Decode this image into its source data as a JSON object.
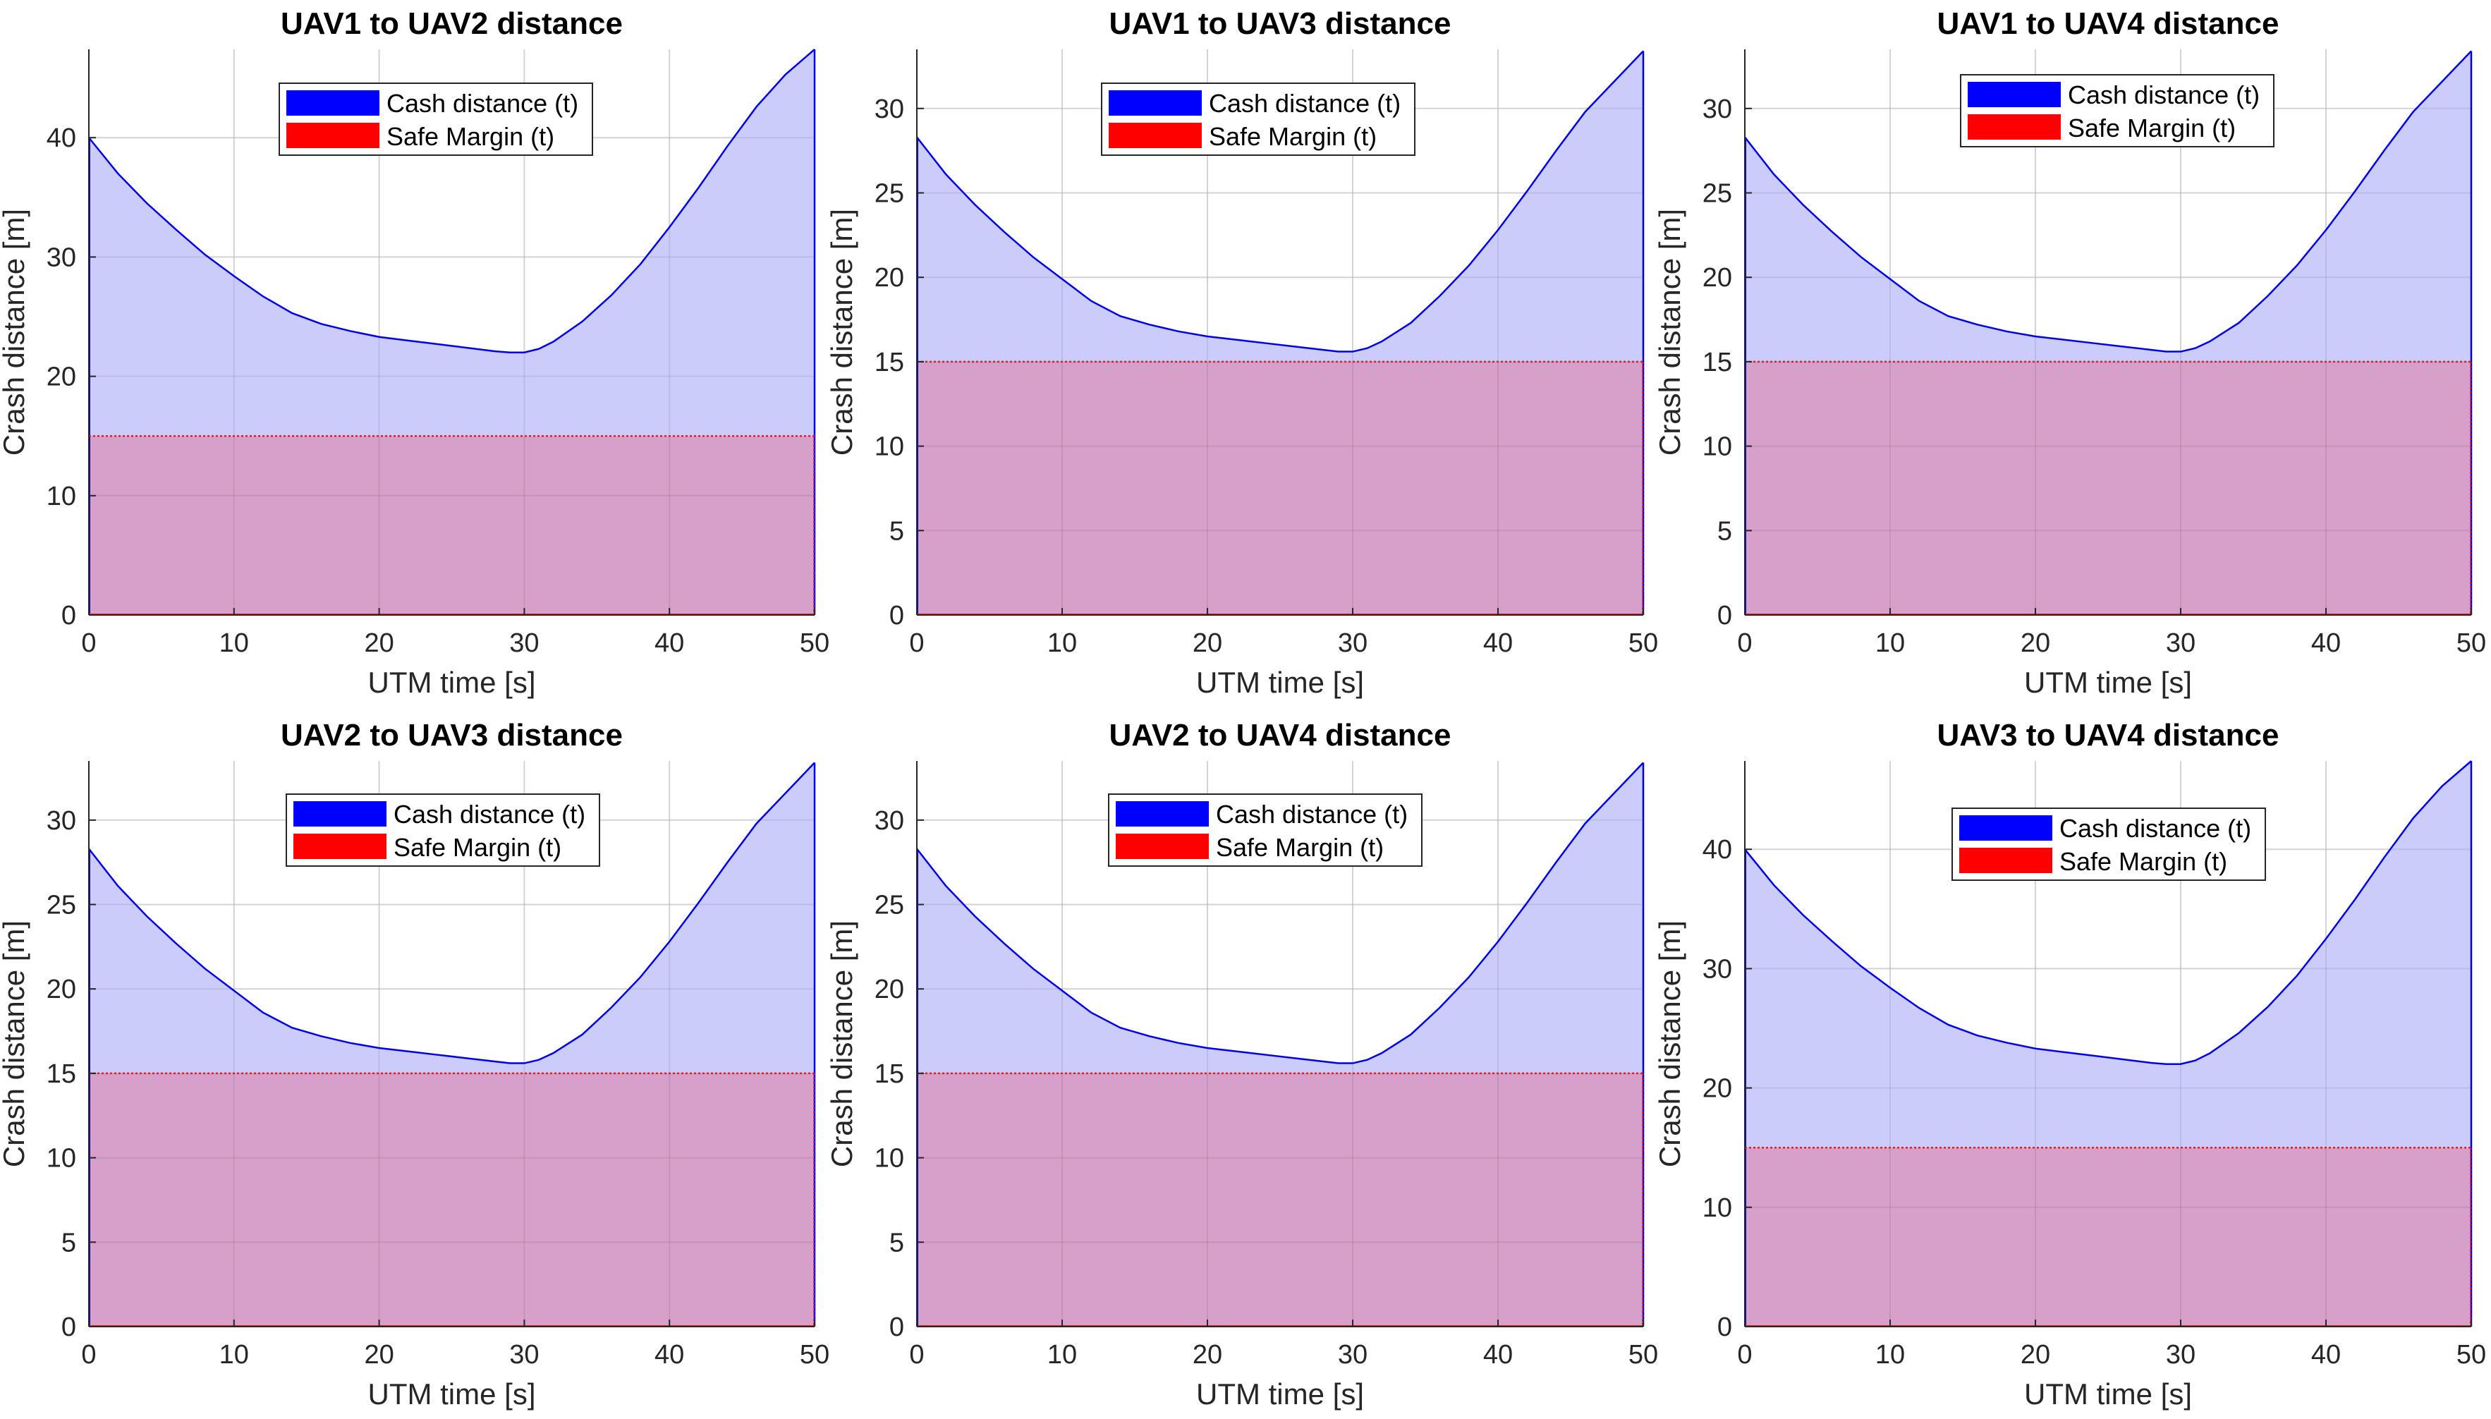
{
  "colors": {
    "crash_fill": "#cbccfa",
    "crash_line": "#0000ee",
    "safe_fill": "#d6a0ca",
    "safe_line": "#e0201c",
    "grid": "#e5e5e5",
    "axis": "#262626",
    "legend_blue": "#0000ff",
    "legend_red": "#ff0000"
  },
  "chart_data": [
    {
      "type": "area",
      "title": "UAV1 to UAV2 distance",
      "xlabel": "UTM time [s]",
      "ylabel": "Crash distance [m]",
      "xlim": [
        0,
        50
      ],
      "ylim": [
        0,
        47.4
      ],
      "xticks": [
        0,
        10,
        20,
        30,
        40,
        50
      ],
      "yticks": [
        0,
        10,
        20,
        30,
        40
      ],
      "grid": true,
      "legend_placement": "top",
      "x": [
        0,
        2,
        4,
        6,
        8,
        10,
        12,
        14,
        16,
        18,
        20,
        22,
        24,
        26,
        28,
        29,
        30,
        31,
        32,
        34,
        36,
        38,
        40,
        42,
        44,
        46,
        48,
        50
      ],
      "series": [
        {
          "name": "Cash distance (t)",
          "values": [
            40.0,
            37.0,
            34.5,
            32.3,
            30.2,
            28.4,
            26.7,
            25.3,
            24.4,
            23.8,
            23.3,
            23.0,
            22.7,
            22.4,
            22.1,
            22.0,
            22.0,
            22.3,
            22.9,
            24.6,
            26.8,
            29.4,
            32.5,
            35.8,
            39.3,
            42.6,
            45.3,
            47.4
          ]
        },
        {
          "name": "Safe Margin (t)",
          "values": [
            15,
            15,
            15,
            15,
            15,
            15,
            15,
            15,
            15,
            15,
            15,
            15,
            15,
            15,
            15,
            15,
            15,
            15,
            15,
            15,
            15,
            15,
            15,
            15,
            15,
            15,
            15,
            15
          ]
        }
      ]
    },
    {
      "type": "area",
      "title": "UAV1 to UAV3 distance",
      "xlabel": "UTM time [s]",
      "ylabel": "Crash distance [m]",
      "xlim": [
        0,
        50
      ],
      "ylim": [
        0,
        33.5
      ],
      "xticks": [
        0,
        10,
        20,
        30,
        40,
        50
      ],
      "yticks": [
        0,
        5,
        10,
        15,
        20,
        25,
        30
      ],
      "grid": true,
      "legend_placement": "top",
      "x": [
        0,
        2,
        4,
        6,
        8,
        10,
        12,
        14,
        16,
        18,
        20,
        22,
        24,
        26,
        28,
        29,
        30,
        31,
        32,
        34,
        36,
        38,
        40,
        42,
        44,
        46,
        48,
        50
      ],
      "series": [
        {
          "name": "Cash distance (t)",
          "values": [
            28.3,
            26.1,
            24.3,
            22.7,
            21.2,
            19.9,
            18.6,
            17.7,
            17.2,
            16.8,
            16.5,
            16.3,
            16.1,
            15.9,
            15.7,
            15.6,
            15.6,
            15.8,
            16.2,
            17.3,
            18.9,
            20.7,
            22.8,
            25.1,
            27.5,
            29.8,
            31.6,
            33.4
          ]
        },
        {
          "name": "Safe Margin (t)",
          "values": [
            15,
            15,
            15,
            15,
            15,
            15,
            15,
            15,
            15,
            15,
            15,
            15,
            15,
            15,
            15,
            15,
            15,
            15,
            15,
            15,
            15,
            15,
            15,
            15,
            15,
            15,
            15,
            15
          ]
        }
      ]
    },
    {
      "type": "area",
      "title": "UAV1 to UAV4 distance",
      "xlabel": "UTM time [s]",
      "ylabel": "Crash distance [m]",
      "xlim": [
        0,
        50
      ],
      "ylim": [
        0,
        33.5
      ],
      "xticks": [
        0,
        10,
        20,
        30,
        40,
        50
      ],
      "yticks": [
        0,
        5,
        10,
        15,
        20,
        25,
        30
      ],
      "grid": true,
      "legend_placement": "top",
      "x": [
        0,
        2,
        4,
        6,
        8,
        10,
        12,
        14,
        16,
        18,
        20,
        22,
        24,
        26,
        28,
        29,
        30,
        31,
        32,
        34,
        36,
        38,
        40,
        42,
        44,
        46,
        48,
        50
      ],
      "series": [
        {
          "name": "Cash distance (t)",
          "values": [
            28.3,
            26.1,
            24.3,
            22.7,
            21.2,
            19.9,
            18.6,
            17.7,
            17.2,
            16.8,
            16.5,
            16.3,
            16.1,
            15.9,
            15.7,
            15.6,
            15.6,
            15.8,
            16.2,
            17.3,
            18.9,
            20.7,
            22.8,
            25.1,
            27.5,
            29.8,
            31.6,
            33.4
          ]
        },
        {
          "name": "Safe Margin (t)",
          "values": [
            15,
            15,
            15,
            15,
            15,
            15,
            15,
            15,
            15,
            15,
            15,
            15,
            15,
            15,
            15,
            15,
            15,
            15,
            15,
            15,
            15,
            15,
            15,
            15,
            15,
            15,
            15,
            15
          ]
        }
      ]
    },
    {
      "type": "area",
      "title": "UAV2 to UAV3 distance",
      "xlabel": "UTM time [s]",
      "ylabel": "Crash distance [m]",
      "xlim": [
        0,
        50
      ],
      "ylim": [
        0,
        33.5
      ],
      "xticks": [
        0,
        10,
        20,
        30,
        40,
        50
      ],
      "yticks": [
        0,
        5,
        10,
        15,
        20,
        25,
        30
      ],
      "grid": true,
      "legend_placement": "top",
      "x": [
        0,
        2,
        4,
        6,
        8,
        10,
        12,
        14,
        16,
        18,
        20,
        22,
        24,
        26,
        28,
        29,
        30,
        31,
        32,
        34,
        36,
        38,
        40,
        42,
        44,
        46,
        48,
        50
      ],
      "series": [
        {
          "name": "Cash distance (t)",
          "values": [
            28.3,
            26.1,
            24.3,
            22.7,
            21.2,
            19.9,
            18.6,
            17.7,
            17.2,
            16.8,
            16.5,
            16.3,
            16.1,
            15.9,
            15.7,
            15.6,
            15.6,
            15.8,
            16.2,
            17.3,
            18.9,
            20.7,
            22.8,
            25.1,
            27.5,
            29.8,
            31.6,
            33.4
          ]
        },
        {
          "name": "Safe Margin (t)",
          "values": [
            15,
            15,
            15,
            15,
            15,
            15,
            15,
            15,
            15,
            15,
            15,
            15,
            15,
            15,
            15,
            15,
            15,
            15,
            15,
            15,
            15,
            15,
            15,
            15,
            15,
            15,
            15,
            15
          ]
        }
      ]
    },
    {
      "type": "area",
      "title": "UAV2 to UAV4 distance",
      "xlabel": "UTM time [s]",
      "ylabel": "Crash distance [m]",
      "xlim": [
        0,
        50
      ],
      "ylim": [
        0,
        33.5
      ],
      "xticks": [
        0,
        10,
        20,
        30,
        40,
        50
      ],
      "yticks": [
        0,
        5,
        10,
        15,
        20,
        25,
        30
      ],
      "grid": true,
      "legend_placement": "top",
      "x": [
        0,
        2,
        4,
        6,
        8,
        10,
        12,
        14,
        16,
        18,
        20,
        22,
        24,
        26,
        28,
        29,
        30,
        31,
        32,
        34,
        36,
        38,
        40,
        42,
        44,
        46,
        48,
        50
      ],
      "series": [
        {
          "name": "Cash distance (t)",
          "values": [
            28.3,
            26.1,
            24.3,
            22.7,
            21.2,
            19.9,
            18.6,
            17.7,
            17.2,
            16.8,
            16.5,
            16.3,
            16.1,
            15.9,
            15.7,
            15.6,
            15.6,
            15.8,
            16.2,
            17.3,
            18.9,
            20.7,
            22.8,
            25.1,
            27.5,
            29.8,
            31.6,
            33.4
          ]
        },
        {
          "name": "Safe Margin (t)",
          "values": [
            15,
            15,
            15,
            15,
            15,
            15,
            15,
            15,
            15,
            15,
            15,
            15,
            15,
            15,
            15,
            15,
            15,
            15,
            15,
            15,
            15,
            15,
            15,
            15,
            15,
            15,
            15,
            15
          ]
        }
      ]
    },
    {
      "type": "area",
      "title": "UAV3 to UAV4 distance",
      "xlabel": "UTM time [s]",
      "ylabel": "Crash distance [m]",
      "xlim": [
        0,
        50
      ],
      "ylim": [
        0,
        47.4
      ],
      "xticks": [
        0,
        10,
        20,
        30,
        40,
        50
      ],
      "yticks": [
        0,
        10,
        20,
        30,
        40
      ],
      "grid": true,
      "legend_placement": "top",
      "x": [
        0,
        2,
        4,
        6,
        8,
        10,
        12,
        14,
        16,
        18,
        20,
        22,
        24,
        26,
        28,
        29,
        30,
        31,
        32,
        34,
        36,
        38,
        40,
        42,
        44,
        46,
        48,
        50
      ],
      "series": [
        {
          "name": "Cash distance (t)",
          "values": [
            40.0,
            37.0,
            34.5,
            32.3,
            30.2,
            28.4,
            26.7,
            25.3,
            24.4,
            23.8,
            23.3,
            23.0,
            22.7,
            22.4,
            22.1,
            22.0,
            22.0,
            22.3,
            22.9,
            24.6,
            26.8,
            29.4,
            32.5,
            35.8,
            39.3,
            42.6,
            45.3,
            47.4
          ]
        },
        {
          "name": "Safe Margin (t)",
          "values": [
            15,
            15,
            15,
            15,
            15,
            15,
            15,
            15,
            15,
            15,
            15,
            15,
            15,
            15,
            15,
            15,
            15,
            15,
            15,
            15,
            15,
            15,
            15,
            15,
            15,
            15,
            15,
            15
          ]
        }
      ]
    }
  ]
}
